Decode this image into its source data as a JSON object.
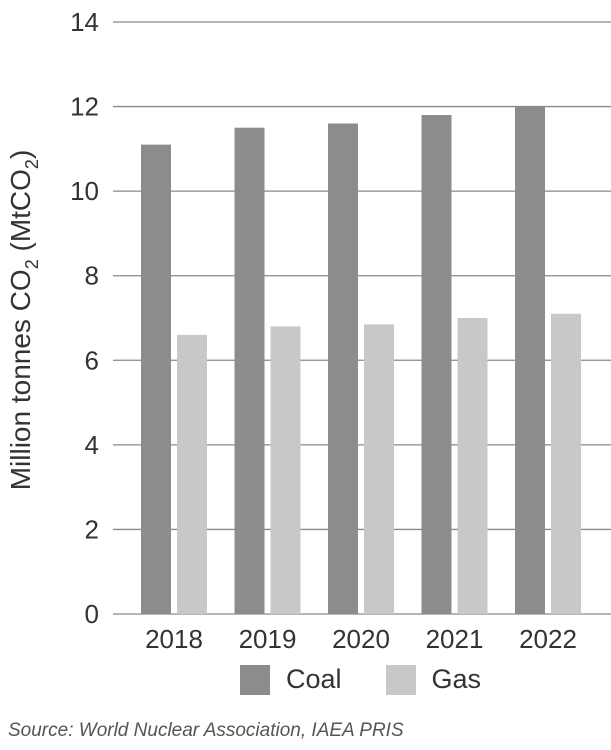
{
  "chart_data": {
    "type": "bar",
    "categories": [
      "2018",
      "2019",
      "2020",
      "2021",
      "2022"
    ],
    "series": [
      {
        "name": "Coal",
        "values": [
          11.1,
          11.5,
          11.6,
          11.8,
          12.0
        ],
        "color": "#8c8c8e"
      },
      {
        "name": "Gas",
        "values": [
          6.6,
          6.8,
          6.85,
          7.0,
          7.1
        ],
        "color": "#c8c8c9"
      }
    ],
    "ylabel": {
      "prefix": "Million tonnes CO",
      "sub1": "2",
      "middle": " (MtCO",
      "sub2": "2",
      "suffix": ")"
    },
    "yticks": [
      "0",
      "2",
      "4",
      "6",
      "8",
      "10",
      "12",
      "14"
    ],
    "ylim": [
      0,
      14
    ],
    "grid": true,
    "legend_placement": "bottom"
  },
  "source": "Source: World Nuclear Association, IAEA PRIS"
}
